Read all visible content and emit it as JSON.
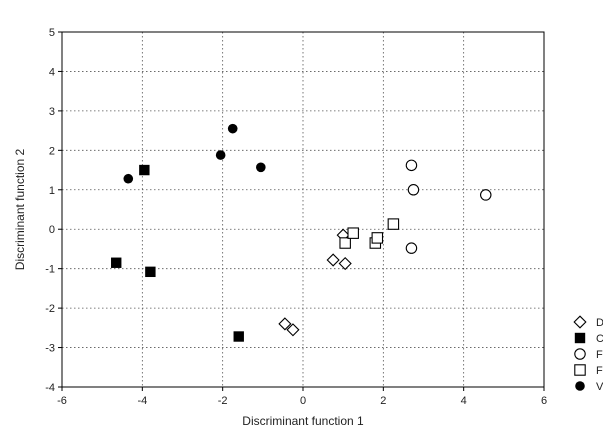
{
  "chart_data": {
    "type": "scatter",
    "xlabel": "Discriminant function 1",
    "ylabel": "Discriminant function 2",
    "xlim": [
      -6,
      6
    ],
    "ylim": [
      -4,
      5
    ],
    "xticks": [
      -6,
      -4,
      -2,
      0,
      2,
      4,
      6
    ],
    "yticks": [
      -4,
      -3,
      -2,
      -1,
      0,
      1,
      2,
      3,
      4,
      5
    ],
    "grid": true,
    "legend_position": "right",
    "series": [
      {
        "name": "D",
        "marker": "diamond-open",
        "points": [
          [
            -0.45,
            -2.4
          ],
          [
            -0.25,
            -2.55
          ],
          [
            0.75,
            -0.78
          ],
          [
            1.05,
            -0.87
          ],
          [
            1.0,
            -0.15
          ]
        ]
      },
      {
        "name": "C",
        "marker": "square-filled",
        "points": [
          [
            -3.95,
            1.5
          ],
          [
            -4.65,
            -0.85
          ],
          [
            -3.8,
            -1.08
          ],
          [
            -1.6,
            -2.72
          ]
        ]
      },
      {
        "name": "F",
        "marker": "circle-open",
        "points": [
          [
            2.7,
            1.62
          ],
          [
            2.75,
            1.0
          ],
          [
            4.55,
            0.87
          ],
          [
            2.7,
            -0.48
          ]
        ]
      },
      {
        "name": "F",
        "marker": "square-open",
        "points": [
          [
            1.05,
            -0.35
          ],
          [
            1.25,
            -0.1
          ],
          [
            1.8,
            -0.35
          ],
          [
            1.85,
            -0.22
          ],
          [
            2.25,
            0.13
          ]
        ]
      },
      {
        "name": "V",
        "marker": "circle-filled",
        "points": [
          [
            -4.35,
            1.28
          ],
          [
            -1.75,
            2.55
          ],
          [
            -2.05,
            1.88
          ],
          [
            -1.05,
            1.57
          ]
        ]
      }
    ]
  }
}
